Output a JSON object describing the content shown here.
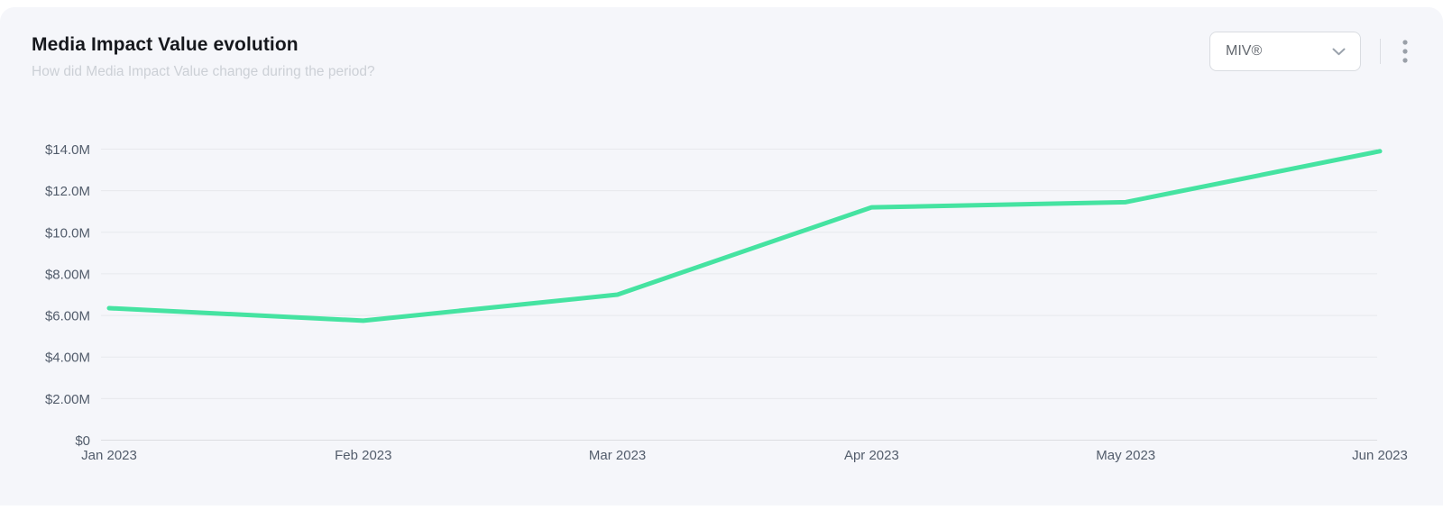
{
  "header": {
    "title": "Media Impact Value evolution",
    "subtitle": "How did Media Impact Value change during the period?"
  },
  "controls": {
    "metric_dropdown": {
      "value": "MIV®",
      "icon": "chevron-down-icon"
    },
    "more_menu": {
      "icon": "kebab-menu-icon"
    }
  },
  "colors": {
    "card_background": "#f5f6fa",
    "page_background": "#ffffff",
    "line": "#45e3a1",
    "gridline": "#e7e9ed",
    "axis_zero_line": "#dcdee2",
    "axis_label": "#525c6b",
    "title": "#16181d",
    "subtitle": "#ccd0d6",
    "icon_gray": "#9aa0a8"
  },
  "chart_data": {
    "type": "line",
    "title": "Media Impact Value evolution",
    "subtitle": "How did Media Impact Value change during the period?",
    "categories": [
      "Jan 2023",
      "Feb 2023",
      "Mar 2023",
      "Apr 2023",
      "May 2023",
      "Jun 2023"
    ],
    "series": [
      {
        "name": "MIV®",
        "values_million_usd": [
          6.35,
          5.75,
          7.0,
          11.2,
          11.45,
          13.9
        ]
      }
    ],
    "y_ticks": [
      {
        "value": 0,
        "label": "$0"
      },
      {
        "value": 2,
        "label": "$2.00M"
      },
      {
        "value": 4,
        "label": "$4.00M"
      },
      {
        "value": 6,
        "label": "$6.00M"
      },
      {
        "value": 8,
        "label": "$8.00M"
      },
      {
        "value": 10,
        "label": "$10.0M"
      },
      {
        "value": 12,
        "label": "$12.0M"
      },
      {
        "value": 14,
        "label": "$14.0M"
      }
    ],
    "ylim": [
      0,
      14
    ],
    "unit": "USD millions",
    "grid": true,
    "legend": "none",
    "line_color": "#45e3a1"
  }
}
